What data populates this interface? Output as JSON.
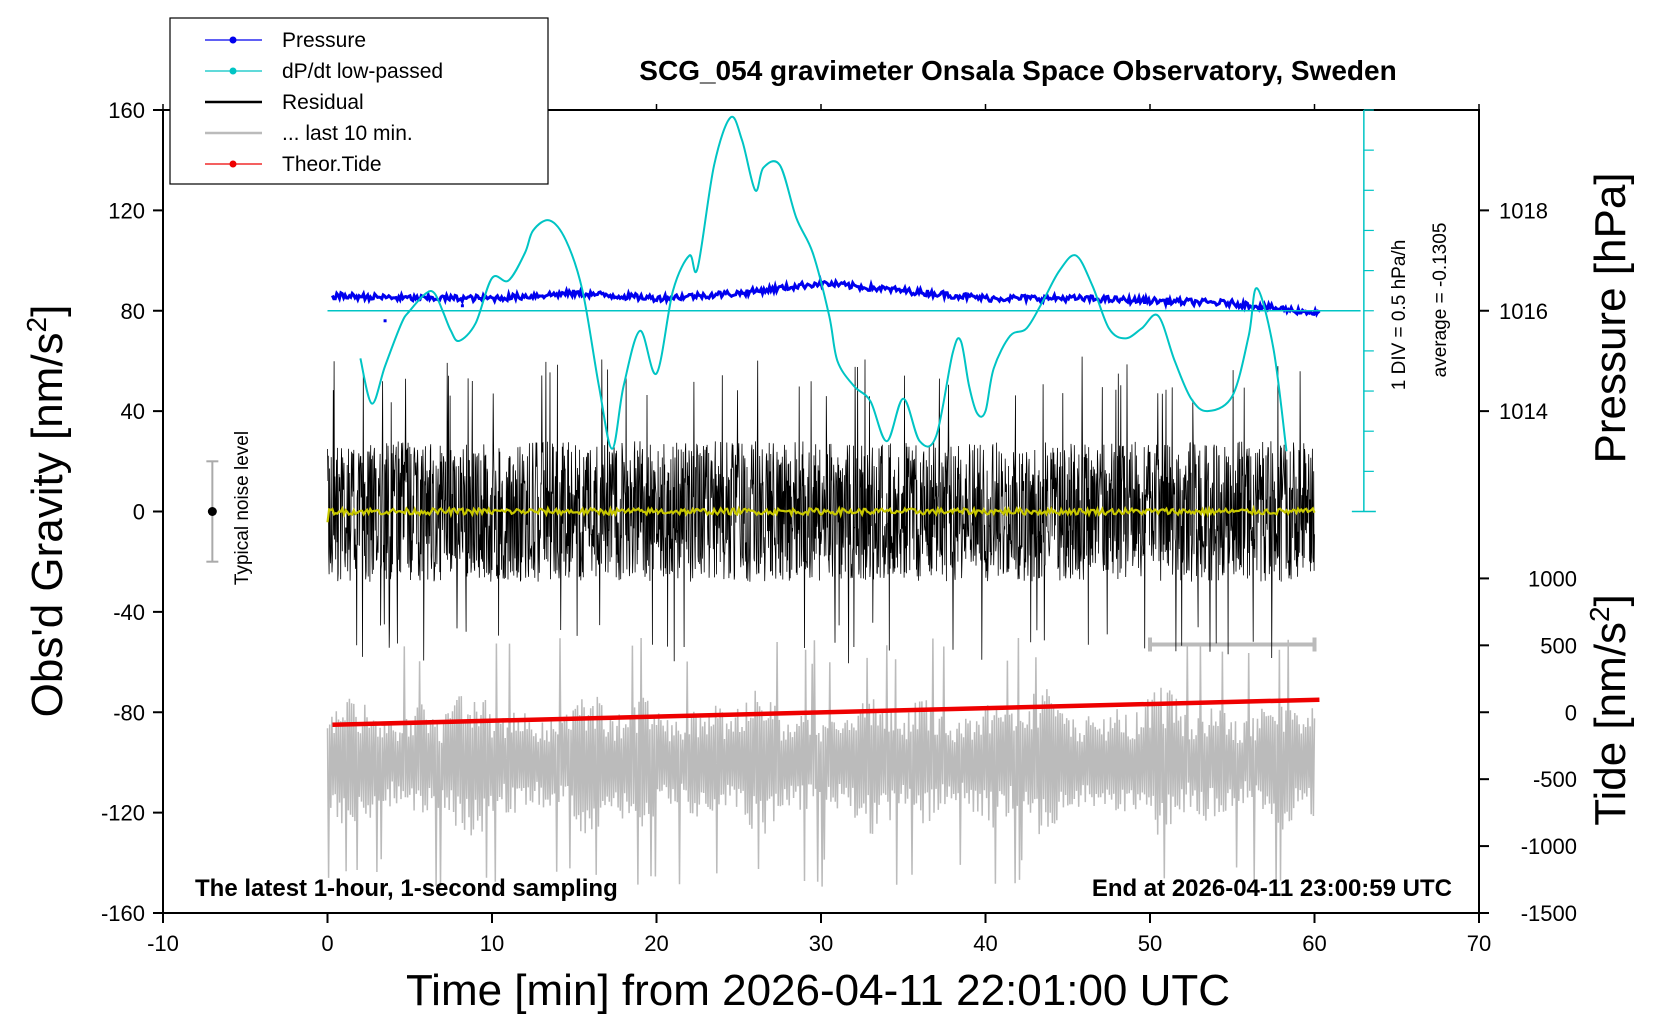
{
  "chart_data": {
    "type": "line",
    "title": "SCG_054 gravimeter Onsala Space Observatory, Sweden",
    "xlabel": "Time [min] from 2026-04-11 22:01:00 UTC",
    "ylabel_left": "Obs'd Gravity [nm/s",
    "ylabel_left_sup": "2",
    "ylabel_left_close": "]",
    "ylabel_right_pressure": "Pressure [hPa]",
    "ylabel_right_tide": "Tide [nm/s",
    "ylabel_right_tide_sup": "2",
    "ylabel_right_tide_close": "]",
    "xlim": [
      -10,
      70
    ],
    "ylim": [
      -160,
      160
    ],
    "x_ticks": [
      "-10",
      "0",
      "10",
      "20",
      "30",
      "40",
      "50",
      "60",
      "70"
    ],
    "y_ticks": [
      "160",
      "120",
      "80",
      "40",
      "0",
      "-40",
      "-80",
      "-120",
      "-160"
    ],
    "pressure_ticks": [
      "1018",
      "1016",
      "1014"
    ],
    "tide_ticks": [
      "1000",
      "500",
      "0",
      "-500",
      "-1000",
      "-1500"
    ],
    "pressure_axis": {
      "value_at_80": 1016,
      "hpa_per_20_gravity_units": 1
    },
    "tide_axis": {
      "value_at_-80": 0,
      "nms2_per_gravity_unit": 18.75
    },
    "footer_left": "The latest 1-hour, 1-second sampling",
    "footer_right": "End at 2026-04-11 23:00:59 UTC",
    "noise_label": "Typical noise level",
    "noise_bar": {
      "x": -7,
      "center": 0,
      "half_range": 20
    },
    "dpdt_scale_label": "1 DIV = 0.5 hPa/h",
    "dpdt_average_label": "average = -0.1305",
    "legend": {
      "position": "top-left",
      "entries": [
        {
          "label": "Pressure",
          "color": "#0000ee",
          "marker": true
        },
        {
          "label": "dP/dt low-passed",
          "color": "#00c4c4",
          "marker": true
        },
        {
          "label": "Residual",
          "color": "#000000",
          "marker": false
        },
        {
          "label": "... last 10 min.",
          "color": "#bbbbbb",
          "marker": false
        },
        {
          "label": "Theor.Tide",
          "color": "#ee0000",
          "marker": true
        }
      ]
    },
    "series": [
      {
        "name": "Pressure",
        "color": "#0000ee",
        "x": [
          0.3,
          5,
          10,
          15,
          20,
          25,
          30,
          35,
          40,
          45,
          50,
          55,
          60.3
        ],
        "y": [
          1016.3,
          1016.25,
          1016.25,
          1016.35,
          1016.25,
          1016.35,
          1016.55,
          1016.4,
          1016.25,
          1016.25,
          1016.2,
          1016.15,
          1015.95
        ]
      },
      {
        "name": "dP/dt low-passed",
        "color": "#00c4c4",
        "x": [
          2,
          2.7,
          3.5,
          4.5,
          5,
          6,
          6.5,
          7,
          7.5,
          8,
          9,
          10,
          11,
          12,
          12.5,
          13.5,
          14.5,
          15.5,
          16.5,
          17.3,
          18,
          19,
          20,
          21,
          22,
          22.5,
          23.5,
          24.5,
          25.2,
          26,
          26.5,
          27.5,
          28.5,
          29.5,
          30.5,
          31,
          32,
          33,
          34,
          35,
          36,
          37,
          38,
          38.5,
          39,
          39.5,
          40,
          40.5,
          41.5,
          42.5,
          43.5,
          44.5,
          45.5,
          46.5,
          47.5,
          48.5,
          49.5,
          50.5,
          51.5,
          52.5,
          53.5,
          55,
          56,
          56.5,
          57.5,
          58.3
        ],
        "y": [
          61,
          43,
          58,
          75,
          80,
          87,
          87,
          80,
          72,
          68,
          75,
          93,
          92,
          103,
          112,
          116,
          108,
          88,
          50,
          25,
          50,
          72,
          55,
          88,
          102,
          97,
          138,
          157,
          148,
          128,
          137,
          138,
          117,
          103,
          78,
          60,
          50,
          44,
          28,
          45,
          28,
          30,
          63,
          68,
          50,
          39,
          40,
          57,
          70,
          73,
          84,
          96,
          102,
          90,
          73,
          69,
          73,
          78,
          60,
          45,
          40,
          46,
          70,
          89,
          65,
          24
        ]
      },
      {
        "name": "Residual",
        "color": "#000000",
        "x_range": [
          0,
          60
        ],
        "typical_amplitude": 28,
        "max_amplitude": 62
      },
      {
        "name": "... last 10 min.",
        "color": "#bbbbbb",
        "x_range": [
          0,
          60
        ],
        "center": -100,
        "typical_amplitude": 22,
        "max_amplitude": 50,
        "marker_bar_x": [
          50,
          60
        ],
        "marker_bar_y": -53
      },
      {
        "name": "Theor.Tide",
        "color": "#ee0000",
        "x": [
          0.3,
          60.3
        ],
        "y": [
          -85,
          -75
        ]
      }
    ]
  }
}
